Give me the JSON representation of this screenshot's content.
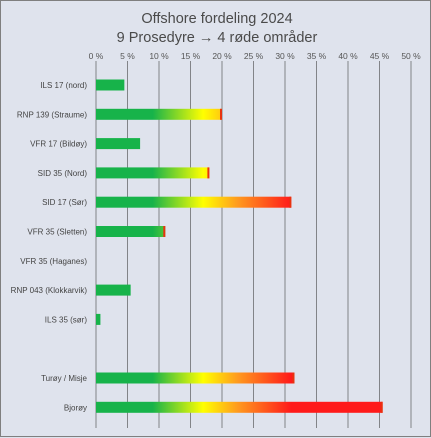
{
  "chart_data": {
    "type": "bar",
    "orientation": "horizontal",
    "title": "Offshore fordeling 2024",
    "subtitle": "9 Prosedyre → 4 røde områder",
    "xlabel": "",
    "ylabel": "",
    "xlim": [
      0,
      50
    ],
    "x_ticks": [
      "0 %",
      "5 %",
      "10 %",
      "15 %",
      "20 %",
      "25 %",
      "30 %",
      "35 %",
      "40 %",
      "45 %",
      "50 %"
    ],
    "grid": "vertical",
    "x_axis_position": "top",
    "categories": [
      "ILS 17 (nord)",
      "RNP 139 (Straume)",
      "VFR 17 (Bildøy)",
      "SID 35 (Nord)",
      "SID 17 (Sør)",
      "VFR 35 (Sletten)",
      "VFR 35 (Haganes)",
      "RNP 043 (Klokkarvik)",
      "ILS 35   (sør)",
      "",
      "Turøy / Misje",
      "Bjorøy"
    ],
    "values": [
      4.5,
      20,
      7,
      18,
      31,
      11,
      0,
      5.5,
      0.7,
      null,
      31.5,
      45.5
    ],
    "bar_fill": "gradient green-yellow-red, colored by value",
    "colors": {
      "green": "#17b34a",
      "yellow": "#ffff00",
      "orange": "#ff9a1f",
      "red": "#ff1a1a",
      "tip": "#e8330f",
      "grid": "#444444"
    }
  }
}
